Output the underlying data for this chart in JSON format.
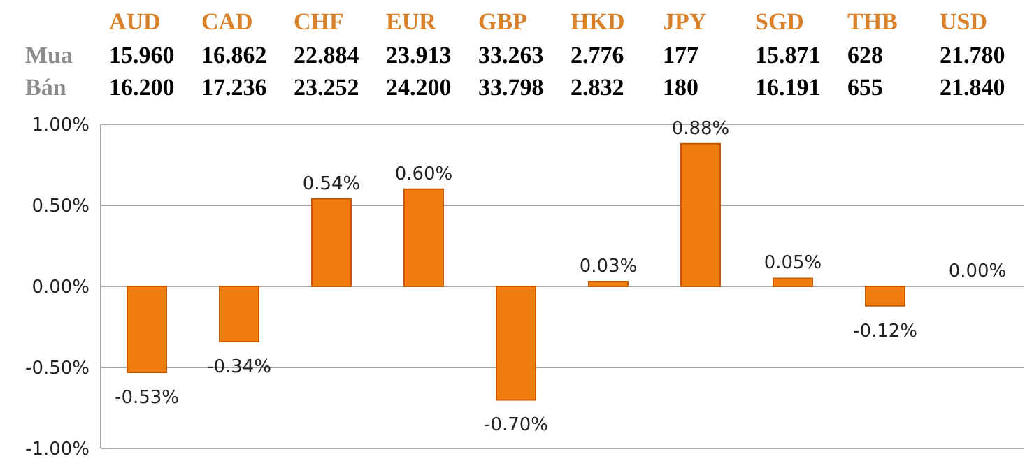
{
  "chart_data": {
    "type": "bar",
    "categories": [
      "AUD",
      "CAD",
      "CHF",
      "EUR",
      "GBP",
      "HKD",
      "JPY",
      "SGD",
      "THB",
      "USD"
    ],
    "values": [
      -0.53,
      -0.34,
      0.54,
      0.6,
      -0.7,
      0.03,
      0.88,
      0.05,
      -0.12,
      0.0
    ],
    "value_labels": [
      "-0.53%",
      "-0.34%",
      "0.54%",
      "0.60%",
      "-0.70%",
      "0.03%",
      "0.88%",
      "0.05%",
      "-0.12%",
      "0.00%"
    ],
    "color": "#f07d0f",
    "ylim": [
      -1,
      1
    ],
    "yticks": [
      {
        "value": -1,
        "label": "-1.00%"
      },
      {
        "value": -0.5,
        "label": "-0.50%"
      },
      {
        "value": 0,
        "label": "0.00%"
      },
      {
        "value": 0.5,
        "label": "0.50%"
      },
      {
        "value": 1,
        "label": "1.00%"
      }
    ],
    "grid": "y",
    "annotations": [
      "Mua",
      "15.960",
      "16.862",
      "22.884",
      "23.913",
      "33.263",
      "2.776",
      "177",
      "15.871",
      "628",
      "21.780",
      "Bán",
      "16.200",
      "17.236",
      "23.252",
      "24.200",
      "33.798",
      "2.832",
      "180",
      "16.191",
      "655",
      "21.840"
    ]
  }
}
